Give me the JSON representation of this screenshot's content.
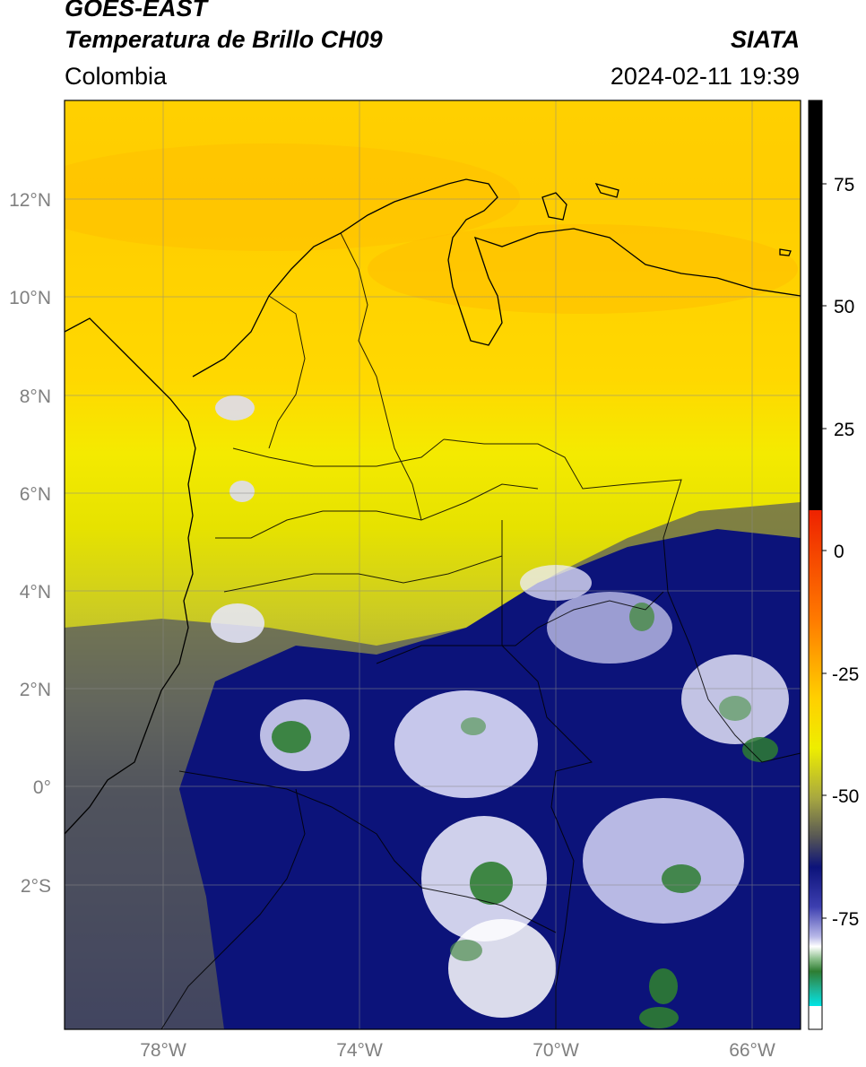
{
  "header": {
    "satellite": "GOES-EAST",
    "product": "Temperatura de Brillo CH09",
    "organization": "SIATA",
    "region": "Colombia",
    "datetime": "2024-02-11 19:39"
  },
  "map": {
    "lat_labels": [
      "12°N",
      "10°N",
      "8°N",
      "6°N",
      "4°N",
      "2°N",
      "0°",
      "2°S"
    ],
    "lon_labels": [
      "78°W",
      "74°W",
      "70°W",
      "66°W"
    ],
    "lat_range": [
      -4.9,
      14.1
    ],
    "lon_range": [
      -79.9,
      -64.9
    ],
    "background": "brightness temperature field"
  },
  "colorbar": {
    "ticks": [
      "75",
      "50",
      "25",
      "0",
      "-25",
      "-50",
      "-75"
    ],
    "range": [
      -95,
      90
    ],
    "colors": {
      "above_10": "#000000",
      "red": "#ee2200",
      "orange": "#ff8c00",
      "yellow": "#ffe600",
      "olive": "#7f7f3a",
      "navy": "#0c137a",
      "white": "#ffffff",
      "green": "#2e7d32",
      "cyan": "#00e5e5"
    }
  }
}
